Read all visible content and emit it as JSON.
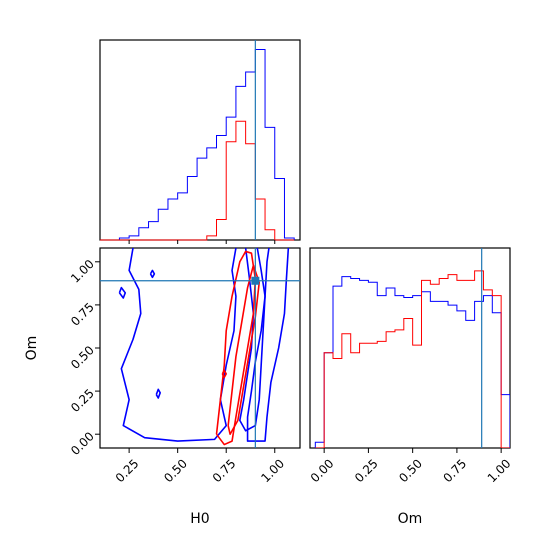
{
  "colors": {
    "blue": "#0000ff",
    "red": "#ff0000",
    "truth": "#1f77b4"
  },
  "chart_data": [
    {
      "type": "histogram",
      "panel": "H0 marginal",
      "xlim": [
        0.1,
        1.13
      ],
      "bin_edges": [
        0.1,
        0.15,
        0.2,
        0.25,
        0.3,
        0.35,
        0.4,
        0.45,
        0.5,
        0.55,
        0.6,
        0.65,
        0.7,
        0.75,
        0.8,
        0.85,
        0.9,
        0.95,
        1.0,
        1.05,
        1.1
      ],
      "series": [
        {
          "color": "blue",
          "counts": [
            0,
            0,
            0.01,
            0.02,
            0.06,
            0.09,
            0.15,
            0.2,
            0.23,
            0.31,
            0.4,
            0.45,
            0.51,
            0.6,
            0.75,
            0.82,
            0.93,
            0.55,
            0.3,
            0.01
          ]
        },
        {
          "color": "red",
          "counts": [
            0,
            0,
            0,
            0,
            0,
            0,
            0,
            0,
            0,
            0,
            0,
            0.02,
            0.1,
            0.48,
            0.58,
            0.47,
            0.2,
            0.05,
            0,
            0
          ]
        }
      ],
      "truth": 0.9
    },
    {
      "type": "contour",
      "panel": "H0 vs Om",
      "xlabel": "H0",
      "ylabel": "Om",
      "xlim": [
        0.1,
        1.13
      ],
      "ylim": [
        -0.08,
        1.08
      ],
      "xticks": [
        "0.25",
        "0.50",
        "0.75",
        "1.00"
      ],
      "yticks": [
        "0.00",
        "0.25",
        "0.50",
        "0.75",
        "1.00"
      ],
      "truth": {
        "x": 0.9,
        "y": 0.89
      },
      "series": [
        {
          "color": "blue",
          "contours": [
            [
              [
                0.27,
                1.08
              ],
              [
                0.25,
                0.95
              ],
              [
                0.3,
                0.84
              ],
              [
                0.31,
                0.7
              ],
              [
                0.27,
                0.55
              ],
              [
                0.21,
                0.38
              ],
              [
                0.25,
                0.2
              ],
              [
                0.22,
                0.05
              ],
              [
                0.33,
                -0.02
              ],
              [
                0.5,
                -0.04
              ],
              [
                0.69,
                -0.03
              ],
              [
                0.75,
                0.05
              ],
              [
                0.72,
                0.2
              ],
              [
                0.75,
                0.4
              ],
              [
                0.79,
                0.6
              ],
              [
                0.8,
                0.8
              ],
              [
                0.78,
                0.95
              ],
              [
                0.8,
                1.08
              ]
            ],
            [
              [
                0.91,
                1.08
              ],
              [
                0.93,
                0.95
              ],
              [
                0.95,
                0.8
              ],
              [
                0.93,
                0.6
              ],
              [
                0.9,
                0.42
              ],
              [
                0.88,
                0.25
              ],
              [
                0.86,
                0.1
              ],
              [
                0.86,
                -0.04
              ],
              [
                0.95,
                -0.04
              ],
              [
                0.96,
                0.1
              ],
              [
                0.98,
                0.3
              ],
              [
                1.02,
                0.5
              ],
              [
                1.05,
                0.7
              ],
              [
                1.06,
                0.9
              ],
              [
                1.07,
                1.08
              ]
            ],
            [
              [
                0.85,
                1.08
              ],
              [
                0.87,
                0.9
              ],
              [
                0.89,
                0.7
              ],
              [
                0.88,
                0.5
              ],
              [
                0.86,
                0.35
              ],
              [
                0.84,
                0.2
              ],
              [
                0.82,
                0.08
              ],
              [
                0.85,
                0.02
              ],
              [
                0.9,
                0.05
              ],
              [
                0.92,
                0.2
              ],
              [
                0.93,
                0.4
              ],
              [
                0.94,
                0.6
              ],
              [
                0.95,
                0.8
              ],
              [
                0.96,
                1.0
              ],
              [
                0.97,
                1.08
              ]
            ],
            [
              [
                0.2,
                0.82
              ],
              [
                0.22,
                0.79
              ],
              [
                0.23,
                0.82
              ],
              [
                0.21,
                0.85
              ],
              [
                0.2,
                0.82
              ]
            ],
            [
              [
                0.36,
                0.93
              ],
              [
                0.37,
                0.91
              ],
              [
                0.38,
                0.93
              ],
              [
                0.37,
                0.95
              ],
              [
                0.36,
                0.93
              ]
            ],
            [
              [
                0.39,
                0.23
              ],
              [
                0.4,
                0.21
              ],
              [
                0.41,
                0.24
              ],
              [
                0.4,
                0.26
              ],
              [
                0.39,
                0.23
              ]
            ]
          ]
        },
        {
          "color": "red",
          "contours": [
            [
              [
                0.7,
                0.0
              ],
              [
                0.72,
                0.2
              ],
              [
                0.74,
                0.4
              ],
              [
                0.75,
                0.6
              ],
              [
                0.78,
                0.8
              ],
              [
                0.82,
                1.0
              ],
              [
                0.85,
                1.06
              ],
              [
                0.88,
                1.05
              ],
              [
                0.9,
                0.9
              ],
              [
                0.89,
                0.7
              ],
              [
                0.86,
                0.5
              ],
              [
                0.83,
                0.3
              ],
              [
                0.8,
                0.1
              ],
              [
                0.78,
                -0.04
              ],
              [
                0.74,
                -0.06
              ],
              [
                0.7,
                0.0
              ]
            ],
            [
              [
                0.76,
                0.05
              ],
              [
                0.78,
                0.25
              ],
              [
                0.8,
                0.45
              ],
              [
                0.83,
                0.65
              ],
              [
                0.86,
                0.85
              ],
              [
                0.89,
                0.98
              ],
              [
                0.92,
                0.88
              ],
              [
                0.9,
                0.68
              ],
              [
                0.87,
                0.48
              ],
              [
                0.84,
                0.28
              ],
              [
                0.81,
                0.08
              ],
              [
                0.77,
                0.0
              ],
              [
                0.76,
                0.05
              ]
            ],
            [
              [
                0.73,
                0.35
              ],
              [
                0.74,
                0.33
              ],
              [
                0.75,
                0.35
              ],
              [
                0.74,
                0.37
              ],
              [
                0.73,
                0.35
              ]
            ]
          ]
        }
      ]
    },
    {
      "type": "histogram",
      "panel": "Om marginal",
      "xlabel": "Om",
      "xlim": [
        -0.08,
        1.05
      ],
      "xticks": [
        "0.00",
        "0.25",
        "0.50",
        "0.75",
        "1.00"
      ],
      "bin_edges": [
        -0.05,
        0.0,
        0.05,
        0.1,
        0.15,
        0.2,
        0.25,
        0.3,
        0.35,
        0.4,
        0.45,
        0.5,
        0.55,
        0.6,
        0.65,
        0.7,
        0.75,
        0.8,
        0.85,
        0.9,
        0.95,
        1.0,
        1.05
      ],
      "series": [
        {
          "color": "blue",
          "counts": [
            0.03,
            0.5,
            0.85,
            0.9,
            0.89,
            0.88,
            0.87,
            0.8,
            0.84,
            0.8,
            0.79,
            0.8,
            0.82,
            0.77,
            0.77,
            0.75,
            0.72,
            0.67,
            0.77,
            0.8,
            0.71,
            0.28
          ]
        },
        {
          "color": "red",
          "counts": [
            0,
            0.5,
            0.47,
            0.6,
            0.5,
            0.55,
            0.55,
            0.56,
            0.61,
            0.62,
            0.68,
            0.54,
            0.88,
            0.86,
            0.89,
            0.91,
            0.88,
            0.88,
            0.93,
            0.83,
            0.8,
            0
          ]
        }
      ],
      "ylim": [
        0,
        1.05
      ],
      "truth": 0.89
    }
  ]
}
